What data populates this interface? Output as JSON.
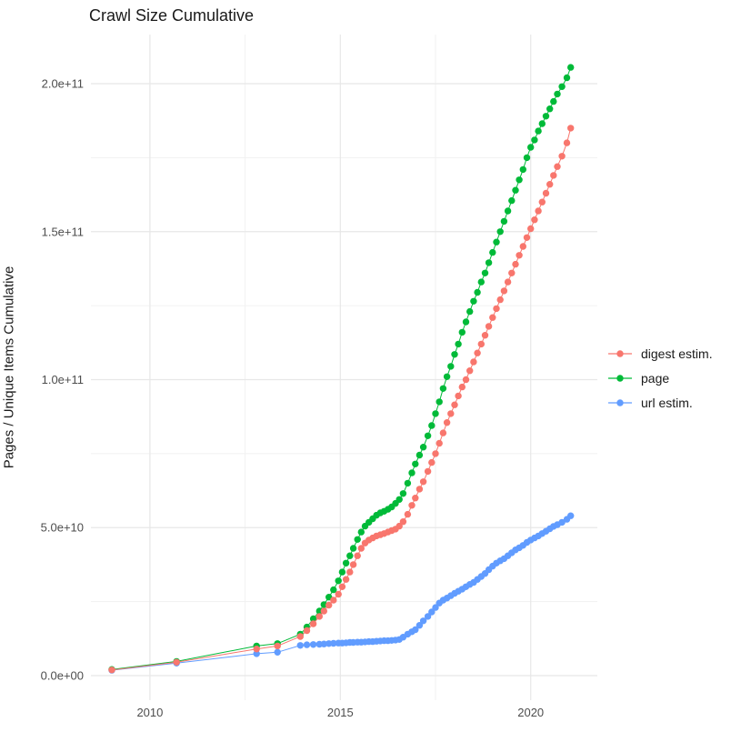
{
  "chart_data": {
    "type": "scatter",
    "title": "Crawl Size Cumulative",
    "xlabel": "",
    "ylabel": "Pages / Unique Items Cumulative",
    "grid": "major+minor",
    "legend_position": "right",
    "xlim": [
      2008.45,
      2021.75
    ],
    "ylim": [
      -8300000000,
      216600000000
    ],
    "x_major_ticks": [
      {
        "label": "2010",
        "value": 2010
      },
      {
        "label": "2015",
        "value": 2015
      },
      {
        "label": "2020",
        "value": 2020
      }
    ],
    "x_minor_ticks": [
      2012.5,
      2017.5
    ],
    "y_major_ticks": [
      {
        "label": "0.0e+00",
        "value": 0
      },
      {
        "label": "5.0e+10",
        "value": 50000000000.0
      },
      {
        "label": "1.0e+11",
        "value": 100000000000.0
      },
      {
        "label": "1.5e+11",
        "value": 150000000000.0
      },
      {
        "label": "2.0e+11",
        "value": 200000000000.0
      }
    ],
    "y_minor_ticks": [
      25000000000.0,
      75000000000.0,
      125000000000.0,
      175000000000.0
    ],
    "colors": {
      "digest": "#F8766D",
      "page": "#00BA38",
      "url": "#619CFF",
      "grid_major": "#E7E7E7",
      "grid_minor": "#F1F1F1",
      "axis_text": "#4D4D4D"
    },
    "series": [
      {
        "name": "url estim.",
        "color": "#619CFF",
        "points": [
          [
            2009.0,
            1800000000.0
          ],
          [
            2010.7,
            4200000000.0
          ],
          [
            2012.8,
            7400000000.0
          ],
          [
            2013.35,
            7900000000.0
          ],
          [
            2013.95,
            10200000000.0
          ],
          [
            2014.12,
            10400000000.0
          ],
          [
            2014.29,
            10500000000.0
          ],
          [
            2014.45,
            10600000000.0
          ],
          [
            2014.57,
            10700000000.0
          ],
          [
            2014.7,
            10800000000.0
          ],
          [
            2014.82,
            10900000000.0
          ],
          [
            2014.95,
            11000000000.0
          ],
          [
            2015.05,
            11000000000.0
          ],
          [
            2015.15,
            11100000000.0
          ],
          [
            2015.25,
            11200000000.0
          ],
          [
            2015.34,
            11200000000.0
          ],
          [
            2015.45,
            11300000000.0
          ],
          [
            2015.55,
            11300000000.0
          ],
          [
            2015.65,
            11400000000.0
          ],
          [
            2015.75,
            11500000000.0
          ],
          [
            2015.85,
            11500000000.0
          ],
          [
            2015.95,
            11600000000.0
          ],
          [
            2016.05,
            11700000000.0
          ],
          [
            2016.15,
            11800000000.0
          ],
          [
            2016.25,
            11800000000.0
          ],
          [
            2016.35,
            11900000000.0
          ],
          [
            2016.45,
            12000000000.0
          ],
          [
            2016.55,
            12200000000.0
          ],
          [
            2016.65,
            13000000000.0
          ],
          [
            2016.77,
            14000000000.0
          ],
          [
            2016.88,
            14800000000.0
          ],
          [
            2016.97,
            15500000000.0
          ],
          [
            2017.08,
            17000000000.0
          ],
          [
            2017.18,
            18500000000.0
          ],
          [
            2017.3,
            20000000000.0
          ],
          [
            2017.4,
            21500000000.0
          ],
          [
            2017.5,
            23000000000.0
          ],
          [
            2017.6,
            24500000000.0
          ],
          [
            2017.7,
            25500000000.0
          ],
          [
            2017.8,
            26200000000.0
          ],
          [
            2017.9,
            27000000000.0
          ],
          [
            2018.0,
            27800000000.0
          ],
          [
            2018.1,
            28500000000.0
          ],
          [
            2018.2,
            29200000000.0
          ],
          [
            2018.3,
            30000000000.0
          ],
          [
            2018.4,
            30800000000.0
          ],
          [
            2018.5,
            31500000000.0
          ],
          [
            2018.6,
            32500000000.0
          ],
          [
            2018.7,
            33500000000.0
          ],
          [
            2018.8,
            34500000000.0
          ],
          [
            2018.9,
            35800000000.0
          ],
          [
            2019.0,
            37000000000.0
          ],
          [
            2019.1,
            38000000000.0
          ],
          [
            2019.2,
            38800000000.0
          ],
          [
            2019.3,
            39500000000.0
          ],
          [
            2019.4,
            40500000000.0
          ],
          [
            2019.5,
            41500000000.0
          ],
          [
            2019.6,
            42500000000.0
          ],
          [
            2019.7,
            43200000000.0
          ],
          [
            2019.8,
            44000000000.0
          ],
          [
            2019.9,
            45000000000.0
          ],
          [
            2020.0,
            45800000000.0
          ],
          [
            2020.1,
            46500000000.0
          ],
          [
            2020.2,
            47200000000.0
          ],
          [
            2020.3,
            48000000000.0
          ],
          [
            2020.4,
            48800000000.0
          ],
          [
            2020.5,
            49600000000.0
          ],
          [
            2020.6,
            50400000000.0
          ],
          [
            2020.7,
            51000000000.0
          ],
          [
            2020.82,
            51800000000.0
          ],
          [
            2020.95,
            52800000000.0
          ],
          [
            2021.05,
            54000000000.0
          ]
        ]
      },
      {
        "name": "page",
        "color": "#00BA38",
        "points": [
          [
            2009.0,
            2100000000.0
          ],
          [
            2010.7,
            4800000000.0
          ],
          [
            2012.8,
            10000000000.0
          ],
          [
            2013.35,
            10800000000.0
          ],
          [
            2013.95,
            14000000000.0
          ],
          [
            2014.12,
            16400000000.0
          ],
          [
            2014.29,
            19200000000.0
          ],
          [
            2014.45,
            21800000000.0
          ],
          [
            2014.57,
            24000000000.0
          ],
          [
            2014.7,
            26500000000.0
          ],
          [
            2014.82,
            29000000000.0
          ],
          [
            2014.95,
            32000000000.0
          ],
          [
            2015.05,
            35000000000.0
          ],
          [
            2015.15,
            38000000000.0
          ],
          [
            2015.25,
            40500000000.0
          ],
          [
            2015.34,
            43000000000.0
          ],
          [
            2015.45,
            46000000000.0
          ],
          [
            2015.55,
            48500000000.0
          ],
          [
            2015.65,
            50500000000.0
          ],
          [
            2015.75,
            51800000000.0
          ],
          [
            2015.85,
            53000000000.0
          ],
          [
            2015.95,
            54200000000.0
          ],
          [
            2016.05,
            55000000000.0
          ],
          [
            2016.15,
            55500000000.0
          ],
          [
            2016.25,
            56200000000.0
          ],
          [
            2016.35,
            57000000000.0
          ],
          [
            2016.45,
            58200000000.0
          ],
          [
            2016.55,
            59500000000.0
          ],
          [
            2016.65,
            61500000000.0
          ],
          [
            2016.77,
            65000000000.0
          ],
          [
            2016.88,
            68500000000.0
          ],
          [
            2016.97,
            71500000000.0
          ],
          [
            2017.08,
            74500000000.0
          ],
          [
            2017.18,
            77200000000.0
          ],
          [
            2017.3,
            81000000000.0
          ],
          [
            2017.4,
            84500000000.0
          ],
          [
            2017.5,
            88500000000.0
          ],
          [
            2017.6,
            92500000000.0
          ],
          [
            2017.7,
            97000000000.0
          ],
          [
            2017.8,
            101000000000.0
          ],
          [
            2017.9,
            104500000000.0
          ],
          [
            2018.0,
            108500000000.0
          ],
          [
            2018.1,
            112000000000.0
          ],
          [
            2018.2,
            116000000000.0
          ],
          [
            2018.3,
            119500000000.0
          ],
          [
            2018.4,
            123000000000.0
          ],
          [
            2018.5,
            126500000000.0
          ],
          [
            2018.6,
            129500000000.0
          ],
          [
            2018.7,
            133000000000.0
          ],
          [
            2018.8,
            136000000000.0
          ],
          [
            2018.9,
            139500000000.0
          ],
          [
            2019.0,
            143000000000.0
          ],
          [
            2019.1,
            146500000000.0
          ],
          [
            2019.2,
            150000000000.0
          ],
          [
            2019.3,
            153500000000.0
          ],
          [
            2019.4,
            157000000000.0
          ],
          [
            2019.5,
            160500000000.0
          ],
          [
            2019.6,
            164000000000.0
          ],
          [
            2019.7,
            167500000000.0
          ],
          [
            2019.8,
            171000000000.0
          ],
          [
            2019.9,
            175000000000.0
          ],
          [
            2020.0,
            178500000000.0
          ],
          [
            2020.1,
            181000000000.0
          ],
          [
            2020.2,
            184000000000.0
          ],
          [
            2020.3,
            186500000000.0
          ],
          [
            2020.4,
            189000000000.0
          ],
          [
            2020.5,
            191500000000.0
          ],
          [
            2020.6,
            194000000000.0
          ],
          [
            2020.7,
            196500000000.0
          ],
          [
            2020.82,
            199000000000.0
          ],
          [
            2020.95,
            202000000000.0
          ],
          [
            2021.05,
            205500000000.0
          ]
        ]
      },
      {
        "name": "digest estim.",
        "color": "#F8766D",
        "points": [
          [
            2009.0,
            1900000000.0
          ],
          [
            2010.7,
            4500000000.0
          ],
          [
            2012.8,
            9000000000.0
          ],
          [
            2013.35,
            10000000000.0
          ],
          [
            2013.95,
            13200000000.0
          ],
          [
            2014.12,
            15200000000.0
          ],
          [
            2014.29,
            17500000000.0
          ],
          [
            2014.45,
            20000000000.0
          ],
          [
            2014.57,
            21800000000.0
          ],
          [
            2014.7,
            23800000000.0
          ],
          [
            2014.82,
            25500000000.0
          ],
          [
            2014.95,
            27500000000.0
          ],
          [
            2015.05,
            30000000000.0
          ],
          [
            2015.15,
            32500000000.0
          ],
          [
            2015.25,
            35000000000.0
          ],
          [
            2015.34,
            37500000000.0
          ],
          [
            2015.45,
            40500000000.0
          ],
          [
            2015.55,
            43000000000.0
          ],
          [
            2015.65,
            44800000000.0
          ],
          [
            2015.75,
            45800000000.0
          ],
          [
            2015.85,
            46500000000.0
          ],
          [
            2015.95,
            47200000000.0
          ],
          [
            2016.05,
            47600000000.0
          ],
          [
            2016.15,
            48000000000.0
          ],
          [
            2016.25,
            48500000000.0
          ],
          [
            2016.35,
            49000000000.0
          ],
          [
            2016.45,
            49500000000.0
          ],
          [
            2016.55,
            50500000000.0
          ],
          [
            2016.65,
            52000000000.0
          ],
          [
            2016.77,
            54500000000.0
          ],
          [
            2016.88,
            57500000000.0
          ],
          [
            2016.97,
            60000000000.0
          ],
          [
            2017.08,
            63000000000.0
          ],
          [
            2017.18,
            65500000000.0
          ],
          [
            2017.3,
            69000000000.0
          ],
          [
            2017.4,
            72000000000.0
          ],
          [
            2017.5,
            75000000000.0
          ],
          [
            2017.6,
            78500000000.0
          ],
          [
            2017.7,
            82000000000.0
          ],
          [
            2017.8,
            85500000000.0
          ],
          [
            2017.9,
            88500000000.0
          ],
          [
            2018.0,
            91500000000.0
          ],
          [
            2018.1,
            94500000000.0
          ],
          [
            2018.2,
            97500000000.0
          ],
          [
            2018.3,
            100000000000.0
          ],
          [
            2018.4,
            103000000000.0
          ],
          [
            2018.5,
            106000000000.0
          ],
          [
            2018.6,
            109000000000.0
          ],
          [
            2018.7,
            112000000000.0
          ],
          [
            2018.8,
            115000000000.0
          ],
          [
            2018.9,
            118000000000.0
          ],
          [
            2019.0,
            121000000000.0
          ],
          [
            2019.1,
            124000000000.0
          ],
          [
            2019.2,
            127000000000.0
          ],
          [
            2019.3,
            130000000000.0
          ],
          [
            2019.4,
            133000000000.0
          ],
          [
            2019.5,
            136000000000.0
          ],
          [
            2019.6,
            139000000000.0
          ],
          [
            2019.7,
            142000000000.0
          ],
          [
            2019.8,
            145000000000.0
          ],
          [
            2019.9,
            148000000000.0
          ],
          [
            2020.0,
            151000000000.0
          ],
          [
            2020.1,
            154000000000.0
          ],
          [
            2020.2,
            157000000000.0
          ],
          [
            2020.3,
            160000000000.0
          ],
          [
            2020.4,
            163000000000.0
          ],
          [
            2020.5,
            166000000000.0
          ],
          [
            2020.6,
            169000000000.0
          ],
          [
            2020.7,
            172000000000.0
          ],
          [
            2020.82,
            175500000000.0
          ],
          [
            2020.95,
            180000000000.0
          ],
          [
            2021.05,
            185000000000.0
          ]
        ]
      }
    ],
    "legend_entries": [
      {
        "label": "digest estim.",
        "color": "#F8766D"
      },
      {
        "label": "page",
        "color": "#00BA38"
      },
      {
        "label": "url estim.",
        "color": "#619CFF"
      }
    ]
  }
}
